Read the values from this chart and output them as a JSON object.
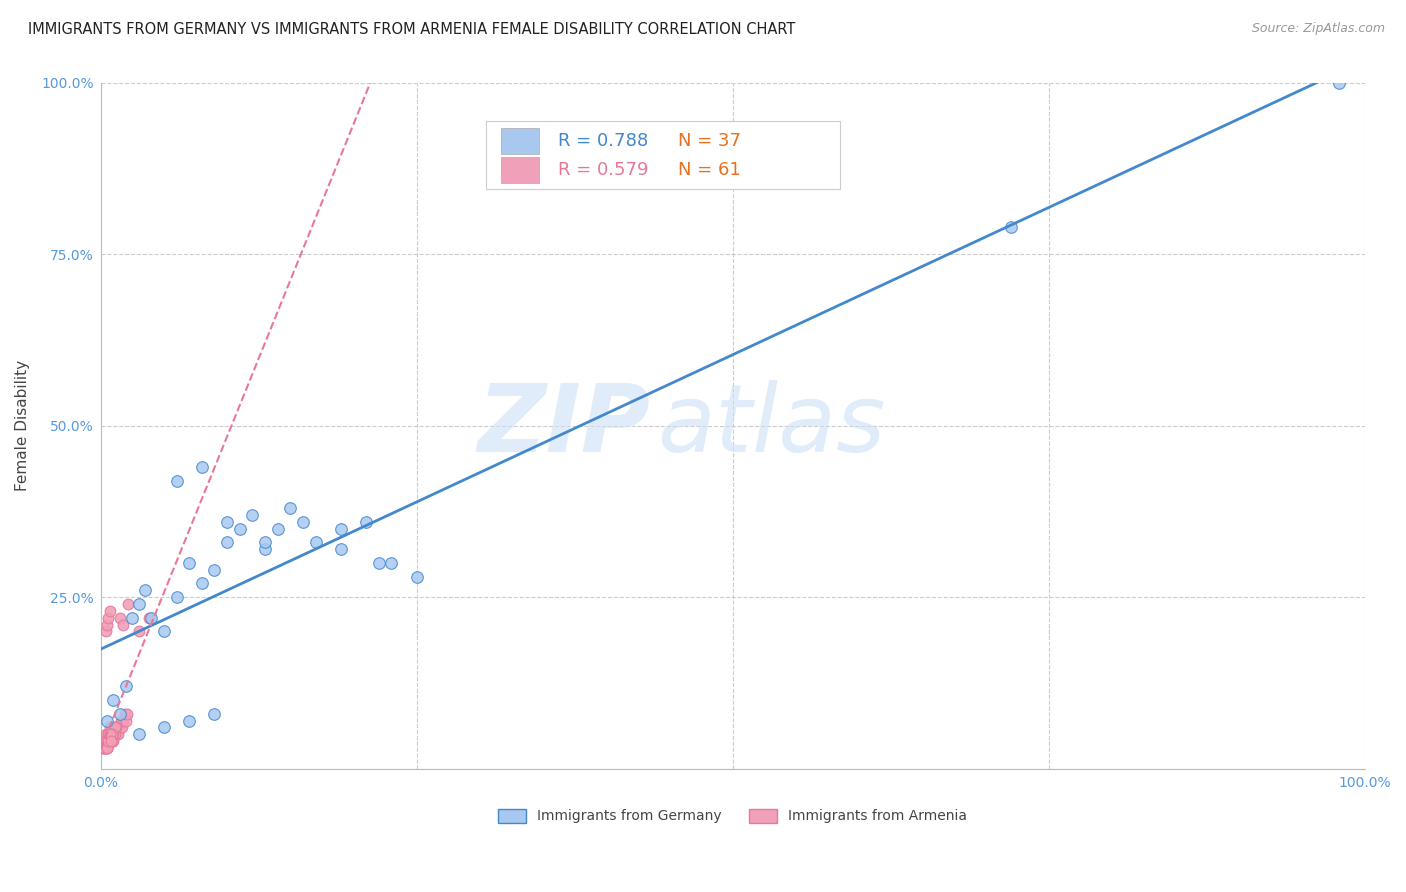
{
  "title": "IMMIGRANTS FROM GERMANY VS IMMIGRANTS FROM ARMENIA FEMALE DISABILITY CORRELATION CHART",
  "source": "Source: ZipAtlas.com",
  "ylabel": "Female Disability",
  "xlim": [
    0.0,
    1.0
  ],
  "ylim": [
    0.0,
    1.0
  ],
  "germany_R": 0.788,
  "germany_N": 37,
  "armenia_R": 0.579,
  "armenia_N": 61,
  "germany_color": "#a8c8f0",
  "armenia_color": "#f0a0b8",
  "germany_line_color": "#4488cc",
  "armenia_line_color": "#e87898",
  "watermark_zip": "ZIP",
  "watermark_atlas": "atlas",
  "background_color": "#ffffff",
  "grid_color": "#cccccc",
  "title_fontsize": 10.5,
  "legend_R_color": "#4488cc",
  "legend_N_color": "#e87020",
  "germany_scatter_x": [
    0.005,
    0.01,
    0.015,
    0.02,
    0.025,
    0.03,
    0.035,
    0.04,
    0.05,
    0.06,
    0.07,
    0.08,
    0.09,
    0.1,
    0.11,
    0.12,
    0.13,
    0.14,
    0.15,
    0.17,
    0.19,
    0.21,
    0.23,
    0.25,
    0.06,
    0.08,
    0.1,
    0.13,
    0.16,
    0.19,
    0.22,
    0.03,
    0.05,
    0.07,
    0.09,
    0.72,
    0.98
  ],
  "germany_scatter_y": [
    0.07,
    0.1,
    0.08,
    0.12,
    0.22,
    0.24,
    0.26,
    0.22,
    0.2,
    0.25,
    0.3,
    0.27,
    0.29,
    0.33,
    0.35,
    0.37,
    0.32,
    0.35,
    0.38,
    0.33,
    0.32,
    0.36,
    0.3,
    0.28,
    0.42,
    0.44,
    0.36,
    0.33,
    0.36,
    0.35,
    0.3,
    0.05,
    0.06,
    0.07,
    0.08,
    0.79,
    1.0
  ],
  "armenia_scatter_x": [
    0.002,
    0.003,
    0.004,
    0.005,
    0.006,
    0.007,
    0.008,
    0.009,
    0.01,
    0.011,
    0.012,
    0.013,
    0.014,
    0.015,
    0.016,
    0.017,
    0.018,
    0.019,
    0.02,
    0.021,
    0.003,
    0.004,
    0.005,
    0.006,
    0.007,
    0.008,
    0.009,
    0.01,
    0.011,
    0.012,
    0.003,
    0.004,
    0.005,
    0.006,
    0.007,
    0.008,
    0.009,
    0.01,
    0.011,
    0.003,
    0.004,
    0.005,
    0.006,
    0.007,
    0.008,
    0.009,
    0.003,
    0.004,
    0.005,
    0.006,
    0.007,
    0.008,
    0.004,
    0.005,
    0.006,
    0.007,
    0.015,
    0.018,
    0.022,
    0.03,
    0.038
  ],
  "armenia_scatter_y": [
    0.03,
    0.04,
    0.03,
    0.04,
    0.05,
    0.04,
    0.05,
    0.04,
    0.05,
    0.06,
    0.05,
    0.06,
    0.05,
    0.06,
    0.07,
    0.06,
    0.07,
    0.08,
    0.07,
    0.08,
    0.03,
    0.04,
    0.03,
    0.04,
    0.05,
    0.04,
    0.05,
    0.04,
    0.05,
    0.06,
    0.04,
    0.05,
    0.04,
    0.05,
    0.06,
    0.05,
    0.06,
    0.05,
    0.06,
    0.03,
    0.04,
    0.03,
    0.04,
    0.05,
    0.04,
    0.05,
    0.03,
    0.04,
    0.03,
    0.04,
    0.05,
    0.04,
    0.2,
    0.21,
    0.22,
    0.23,
    0.22,
    0.21,
    0.24,
    0.2,
    0.22
  ],
  "bottom_legend_germany": "Immigrants from Germany",
  "bottom_legend_armenia": "Immigrants from Armenia"
}
